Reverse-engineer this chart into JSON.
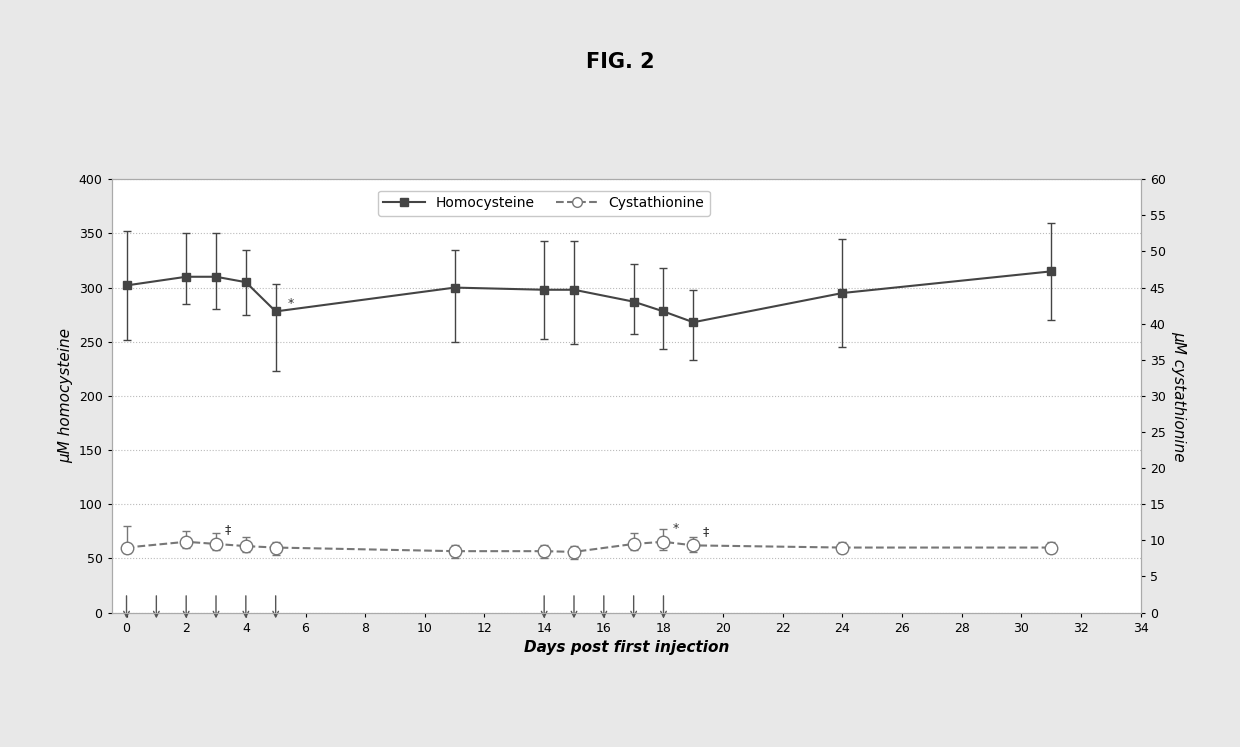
{
  "title": "FIG. 2",
  "xlabel": "Days post first injection",
  "ylabel_left": "μM homocysteine",
  "ylabel_right": "μM cystathionine",
  "xlim": [
    -0.5,
    34
  ],
  "ylim_left": [
    0,
    400
  ],
  "ylim_right": [
    0,
    60
  ],
  "yticks_left": [
    0,
    50,
    100,
    150,
    200,
    250,
    300,
    350,
    400
  ],
  "yticks_right": [
    0,
    5,
    10,
    15,
    20,
    25,
    30,
    35,
    40,
    45,
    50,
    55,
    60
  ],
  "xticks": [
    0,
    2,
    4,
    6,
    8,
    10,
    12,
    14,
    16,
    18,
    20,
    22,
    24,
    26,
    28,
    30,
    32,
    34
  ],
  "homocysteine_x": [
    0,
    2,
    3,
    4,
    5,
    11,
    14,
    15,
    17,
    18,
    19,
    24,
    31
  ],
  "homocysteine_y": [
    302,
    310,
    310,
    305,
    278,
    300,
    298,
    298,
    287,
    278,
    268,
    295,
    315
  ],
  "homocysteine_yerr_low": [
    50,
    25,
    30,
    30,
    55,
    50,
    45,
    50,
    30,
    35,
    35,
    50,
    45
  ],
  "homocysteine_yerr_high": [
    50,
    40,
    40,
    30,
    25,
    35,
    45,
    45,
    35,
    40,
    30,
    50,
    45
  ],
  "cystathionine_x": [
    0,
    2,
    3,
    4,
    5,
    11,
    14,
    15,
    17,
    18,
    19,
    24,
    31
  ],
  "cystathionine_y": [
    9.0,
    9.8,
    9.5,
    9.2,
    9.0,
    8.5,
    8.5,
    8.4,
    9.5,
    9.8,
    9.3,
    9.0,
    9.0
  ],
  "cystathionine_yerr_low": [
    0.8,
    0.8,
    0.8,
    0.8,
    1.0,
    1.0,
    1.0,
    1.0,
    0.9,
    1.2,
    0.9,
    0.8,
    0.8
  ],
  "cystathionine_yerr_high": [
    3.0,
    1.5,
    1.5,
    1.2,
    0.8,
    0.8,
    0.8,
    0.8,
    1.5,
    1.8,
    1.2,
    0.8,
    0.8
  ],
  "injection_days_group1": [
    0,
    1,
    2,
    3,
    4,
    5
  ],
  "injection_days_group2": [
    14,
    15,
    16,
    17,
    18
  ],
  "background_color": "#e8e8e8",
  "plot_bg_color": "#ffffff",
  "homocysteine_color": "#444444",
  "cystathionine_color": "#777777",
  "grid_color": "#bbbbbb",
  "title_fontsize": 15,
  "label_fontsize": 11,
  "tick_fontsize": 9,
  "legend_fontsize": 10
}
